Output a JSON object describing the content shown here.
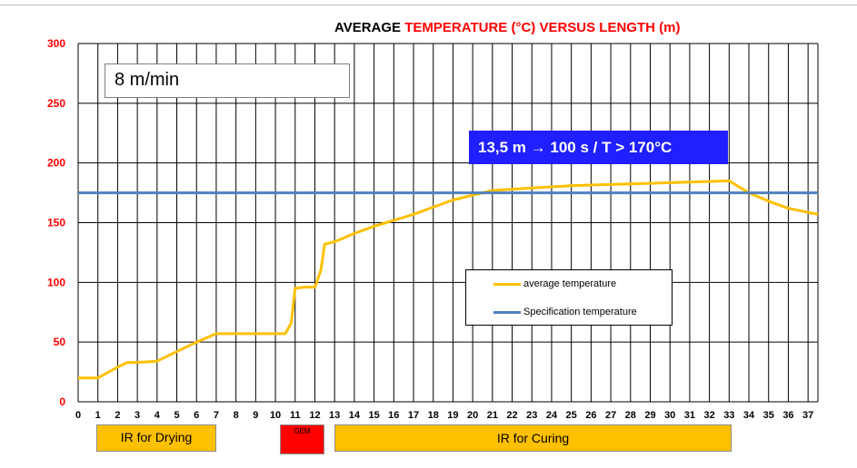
{
  "chart_data": {
    "type": "line",
    "title_parts": [
      {
        "text": "AVERAGE ",
        "color": "#000000"
      },
      {
        "text": "TEMPERATURE  (°C) ",
        "color": "#ff0000"
      },
      {
        "text": "VERSUS LENGTH (m)",
        "color": "#ff0000"
      }
    ],
    "xlabel": "",
    "ylabel": "",
    "xlim": [
      0,
      37.5
    ],
    "ylim": [
      0,
      300
    ],
    "x_ticks": [
      0,
      1,
      2,
      3,
      4,
      5,
      6,
      7,
      8,
      9,
      10,
      11,
      12,
      13,
      14,
      15,
      16,
      17,
      18,
      19,
      20,
      21,
      22,
      23,
      24,
      25,
      26,
      27,
      28,
      29,
      30,
      31,
      32,
      33,
      34,
      35,
      36,
      37
    ],
    "y_ticks": [
      0,
      50,
      100,
      150,
      200,
      250,
      300
    ],
    "tick_color_y": "#ff0000",
    "grid": true,
    "series": [
      {
        "name": "average temperature",
        "color": "#ffc000",
        "x": [
          0,
          1,
          2,
          2.5,
          3,
          4,
          5,
          6,
          7,
          8,
          9,
          10,
          10.5,
          10.8,
          11,
          11.5,
          12,
          12.3,
          12.5,
          13,
          14,
          15,
          16,
          17,
          18,
          19,
          20,
          21,
          22,
          23,
          24,
          25,
          26,
          27,
          28,
          29,
          30,
          31,
          32,
          33,
          34,
          35,
          36,
          37.5
        ],
        "y": [
          20,
          20,
          29,
          33,
          33,
          34,
          42,
          50,
          57,
          57,
          57,
          57,
          57,
          66,
          95,
          96,
          96,
          110,
          132,
          134,
          141,
          147,
          152,
          157,
          163,
          169,
          173,
          177,
          178,
          179,
          180,
          181,
          181.5,
          182,
          182.5,
          183,
          183.5,
          184,
          184.5,
          185,
          175,
          168,
          162,
          157
        ]
      },
      {
        "name": "Specification temperature",
        "color": "#4f81bd",
        "x": [
          0,
          37.5
        ],
        "y": [
          175,
          175
        ]
      }
    ]
  },
  "speed_label": "8 m/min",
  "callout": "13,5 m → 100 s / T > 170°C",
  "legend": {
    "items": [
      "average temperature",
      "Specification temperature"
    ]
  },
  "zones": [
    {
      "label": "IR for Drying",
      "color": "#ffc000"
    },
    {
      "label": "GEM",
      "color": "#ff0000"
    },
    {
      "label": "IR for Curing",
      "color": "#ffc000"
    }
  ]
}
